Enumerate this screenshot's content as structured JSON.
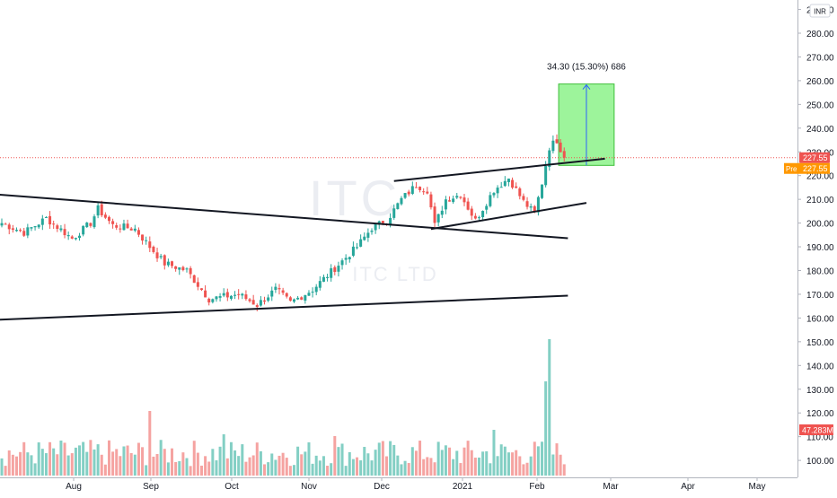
{
  "chart_data": {
    "type": "candlestick",
    "symbol_watermark": "ITC",
    "name_watermark": "ITC LTD",
    "currency": "INR",
    "price_axis": {
      "ticks": [
        "100.00",
        "110.00",
        "120.00",
        "130.00",
        "140.00",
        "150.00",
        "160.00",
        "170.00",
        "180.00",
        "190.00",
        "200.00",
        "210.00",
        "220.00",
        "230.00",
        "240.00",
        "250.00",
        "260.00",
        "270.00",
        "280.00",
        "290.00"
      ],
      "range": [
        95,
        292
      ]
    },
    "time_axis": {
      "labels": [
        "Aug",
        "Sep",
        "Oct",
        "Nov",
        "Dec",
        "2021",
        "Feb",
        "Mar",
        "Apr",
        "May"
      ]
    },
    "last_price": "227.55",
    "pre_market": {
      "label": "Pre",
      "value": "227.55"
    },
    "volume_label": "47.283M",
    "measure": {
      "text": "34.30 (15.30%) 686",
      "from": 224.3,
      "to": 258.6
    },
    "trendlines": [
      {
        "from": {
          "i": -5,
          "p": 212.5
        },
        "to": {
          "i": 153,
          "p": 193.6
        }
      },
      {
        "from": {
          "i": -5,
          "p": 159.0
        },
        "to": {
          "i": 153,
          "p": 169.4
        }
      },
      {
        "from": {
          "i": 106,
          "p": 217.7
        },
        "to": {
          "i": 163,
          "p": 227.1
        }
      },
      {
        "from": {
          "i": 116,
          "p": 197.5
        },
        "to": {
          "i": 158,
          "p": 208.5
        }
      }
    ],
    "anchors": [
      [
        0,
        200.0
      ],
      [
        6,
        196.0
      ],
      [
        12,
        202.0
      ],
      [
        17,
        196.0
      ],
      [
        19,
        193.5
      ],
      [
        24,
        200.0
      ],
      [
        26,
        206.0
      ],
      [
        30,
        199.0
      ],
      [
        36,
        197.5
      ],
      [
        40,
        190.0
      ],
      [
        44,
        183.0
      ],
      [
        50,
        180.0
      ],
      [
        56,
        168.0
      ],
      [
        64,
        170.0
      ],
      [
        69,
        165.5
      ],
      [
        74,
        172.0
      ],
      [
        78,
        166.5
      ],
      [
        84,
        172.0
      ],
      [
        90,
        181.0
      ],
      [
        96,
        190.0
      ],
      [
        100,
        198.0
      ],
      [
        104,
        201.0
      ],
      [
        108,
        210.0
      ],
      [
        112,
        216.0
      ],
      [
        115,
        214.0
      ],
      [
        117,
        199.0
      ],
      [
        120,
        210.0
      ],
      [
        124,
        212.0
      ],
      [
        128,
        201.0
      ],
      [
        133,
        214.0
      ],
      [
        137,
        219.0
      ],
      [
        141,
        209.0
      ],
      [
        144,
        204.0
      ],
      [
        146,
        217.0
      ],
      [
        148,
        232.0
      ],
      [
        150,
        235.0
      ],
      [
        152,
        227.55
      ]
    ],
    "bars": 153,
    "volume_spikes": {
      "40": 72,
      "60": 46,
      "90": 44,
      "133": 51,
      "147": 105,
      "148": 152
    }
  }
}
